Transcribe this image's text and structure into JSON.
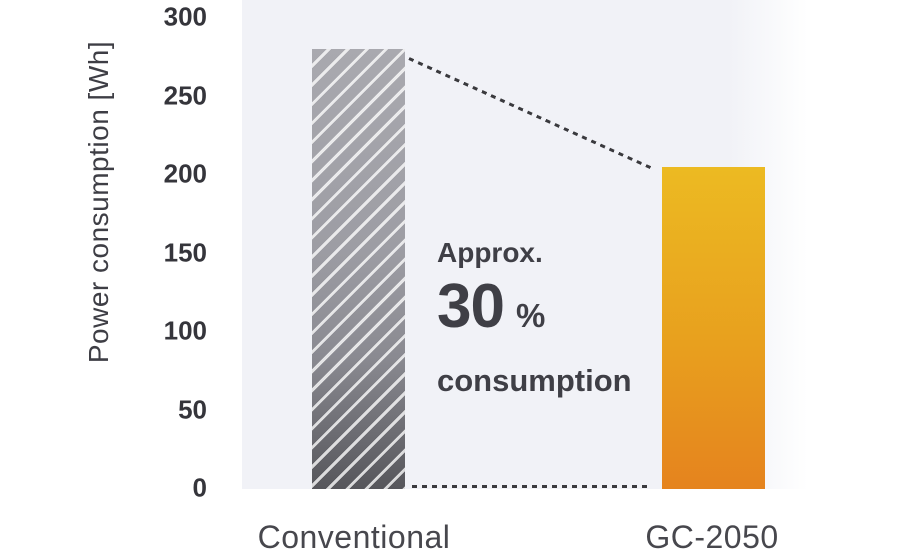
{
  "chart_data": {
    "type": "bar",
    "title": "",
    "ylabel": "Power consumption [Wh]",
    "ylim": [
      0,
      300
    ],
    "yticks": [
      300,
      250,
      200,
      150,
      100,
      50,
      0
    ],
    "categories": [
      "Conventional",
      "GC-2050"
    ],
    "values": [
      280,
      205
    ],
    "grid": false,
    "legend": "none",
    "annotation": {
      "prefix": "Approx.",
      "value": "30",
      "unit": "%",
      "suffix": "consumption"
    },
    "colors": {
      "conventional_bar_top": "#a9a9af",
      "conventional_bar_bottom": "#56565b",
      "conventional_hatch": "#ffffff",
      "gc2050_bar_top": "#ecba22",
      "gc2050_bar_bottom": "#e5831e",
      "plot_background": "#f1f2f7",
      "text": "#3f3f46",
      "dotted_line": "#3a3a3e"
    }
  }
}
